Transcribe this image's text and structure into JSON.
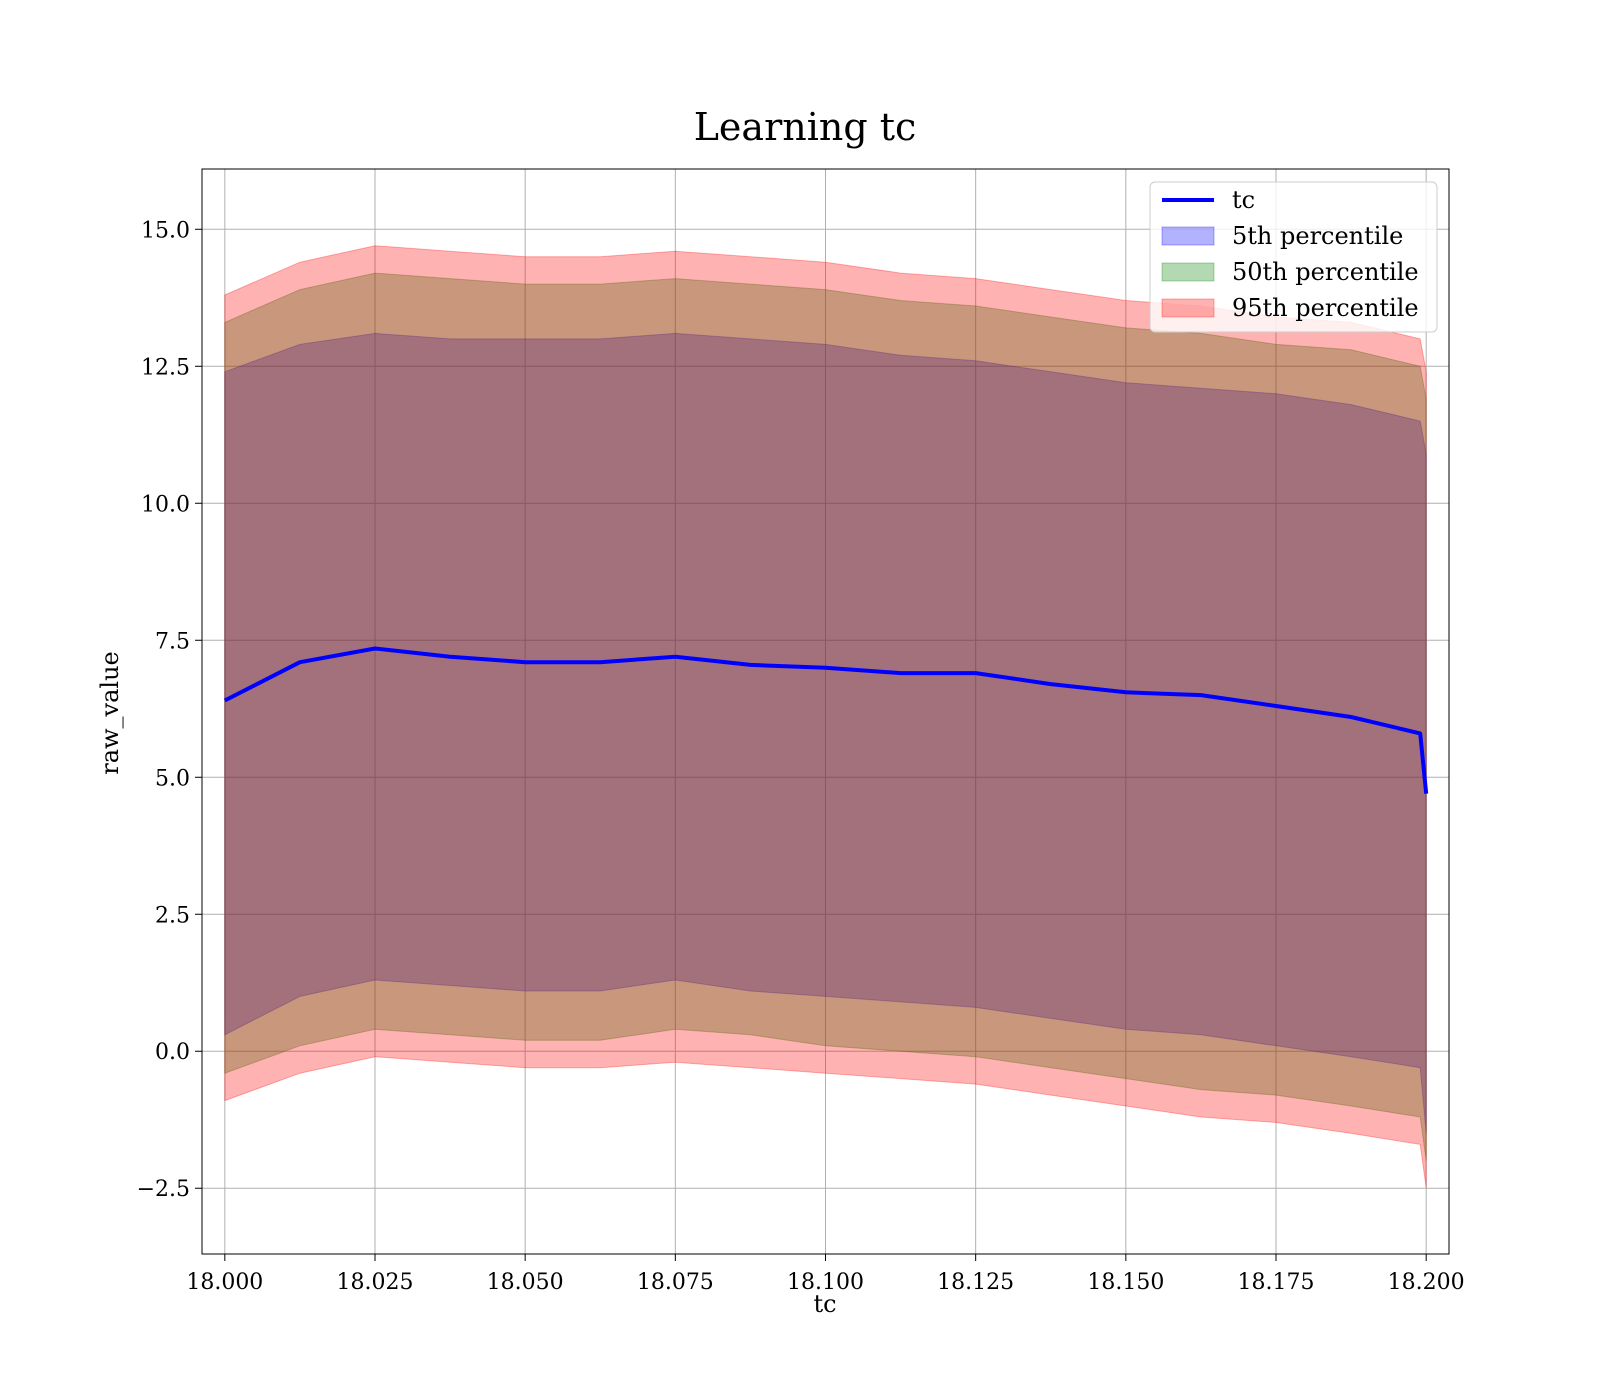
{
  "chart_data": {
    "type": "area",
    "title": "Learning tc",
    "xlabel": "tc",
    "ylabel": "raw_value",
    "xlim": [
      17.9962,
      18.2038
    ],
    "ylim": [
      -3.7,
      16.1
    ],
    "xticks": [
      18.0,
      18.025,
      18.05,
      18.075,
      18.1,
      18.125,
      18.15,
      18.175,
      18.2
    ],
    "xtick_labels": [
      "18.000",
      "18.025",
      "18.050",
      "18.075",
      "18.100",
      "18.125",
      "18.150",
      "18.175",
      "18.200"
    ],
    "yticks": [
      -2.5,
      0.0,
      2.5,
      5.0,
      7.5,
      10.0,
      12.5,
      15.0
    ],
    "ytick_labels": [
      "−2.5",
      "0.0",
      "2.5",
      "5.0",
      "7.5",
      "10.0",
      "12.5",
      "15.0"
    ],
    "grid": true,
    "legend_position": "top-right",
    "x": [
      18.0,
      18.0125,
      18.025,
      18.0375,
      18.05,
      18.0625,
      18.075,
      18.0875,
      18.1,
      18.1125,
      18.125,
      18.1375,
      18.15,
      18.1625,
      18.175,
      18.1875,
      18.199,
      18.2
    ],
    "series": [
      {
        "name": "tc",
        "kind": "line",
        "color": "#0000ff",
        "values": [
          6.4,
          7.1,
          7.35,
          7.2,
          7.1,
          7.1,
          7.2,
          7.05,
          7.0,
          6.9,
          6.9,
          6.7,
          6.55,
          6.5,
          6.3,
          6.1,
          5.8,
          4.7
        ]
      },
      {
        "name": "5th percentile",
        "kind": "band",
        "color": "#0000ff",
        "upper": [
          12.4,
          12.9,
          13.1,
          13.0,
          13.0,
          13.0,
          13.1,
          13.0,
          12.9,
          12.7,
          12.6,
          12.4,
          12.2,
          12.1,
          12.0,
          11.8,
          11.5,
          10.9
        ],
        "lower": [
          0.3,
          1.0,
          1.3,
          1.2,
          1.1,
          1.1,
          1.3,
          1.1,
          1.0,
          0.9,
          0.8,
          0.6,
          0.4,
          0.3,
          0.1,
          -0.1,
          -0.3,
          -1.5
        ]
      },
      {
        "name": "50th percentile",
        "kind": "band",
        "color": "#008000",
        "upper": [
          13.3,
          13.9,
          14.2,
          14.1,
          14.0,
          14.0,
          14.1,
          14.0,
          13.9,
          13.7,
          13.6,
          13.4,
          13.2,
          13.1,
          12.9,
          12.8,
          12.5,
          11.9
        ],
        "lower": [
          -0.4,
          0.1,
          0.4,
          0.3,
          0.2,
          0.2,
          0.4,
          0.3,
          0.1,
          0.0,
          -0.1,
          -0.3,
          -0.5,
          -0.7,
          -0.8,
          -1.0,
          -1.2,
          -2.0
        ]
      },
      {
        "name": "95th percentile",
        "kind": "band",
        "color": "#ff0000",
        "upper": [
          13.8,
          14.4,
          14.7,
          14.6,
          14.5,
          14.5,
          14.6,
          14.5,
          14.4,
          14.2,
          14.1,
          13.9,
          13.7,
          13.6,
          13.4,
          13.3,
          13.0,
          12.4
        ],
        "lower": [
          -0.9,
          -0.4,
          -0.1,
          -0.2,
          -0.3,
          -0.3,
          -0.2,
          -0.3,
          -0.4,
          -0.5,
          -0.6,
          -0.8,
          -1.0,
          -1.2,
          -1.3,
          -1.5,
          -1.7,
          -2.5
        ]
      }
    ]
  }
}
